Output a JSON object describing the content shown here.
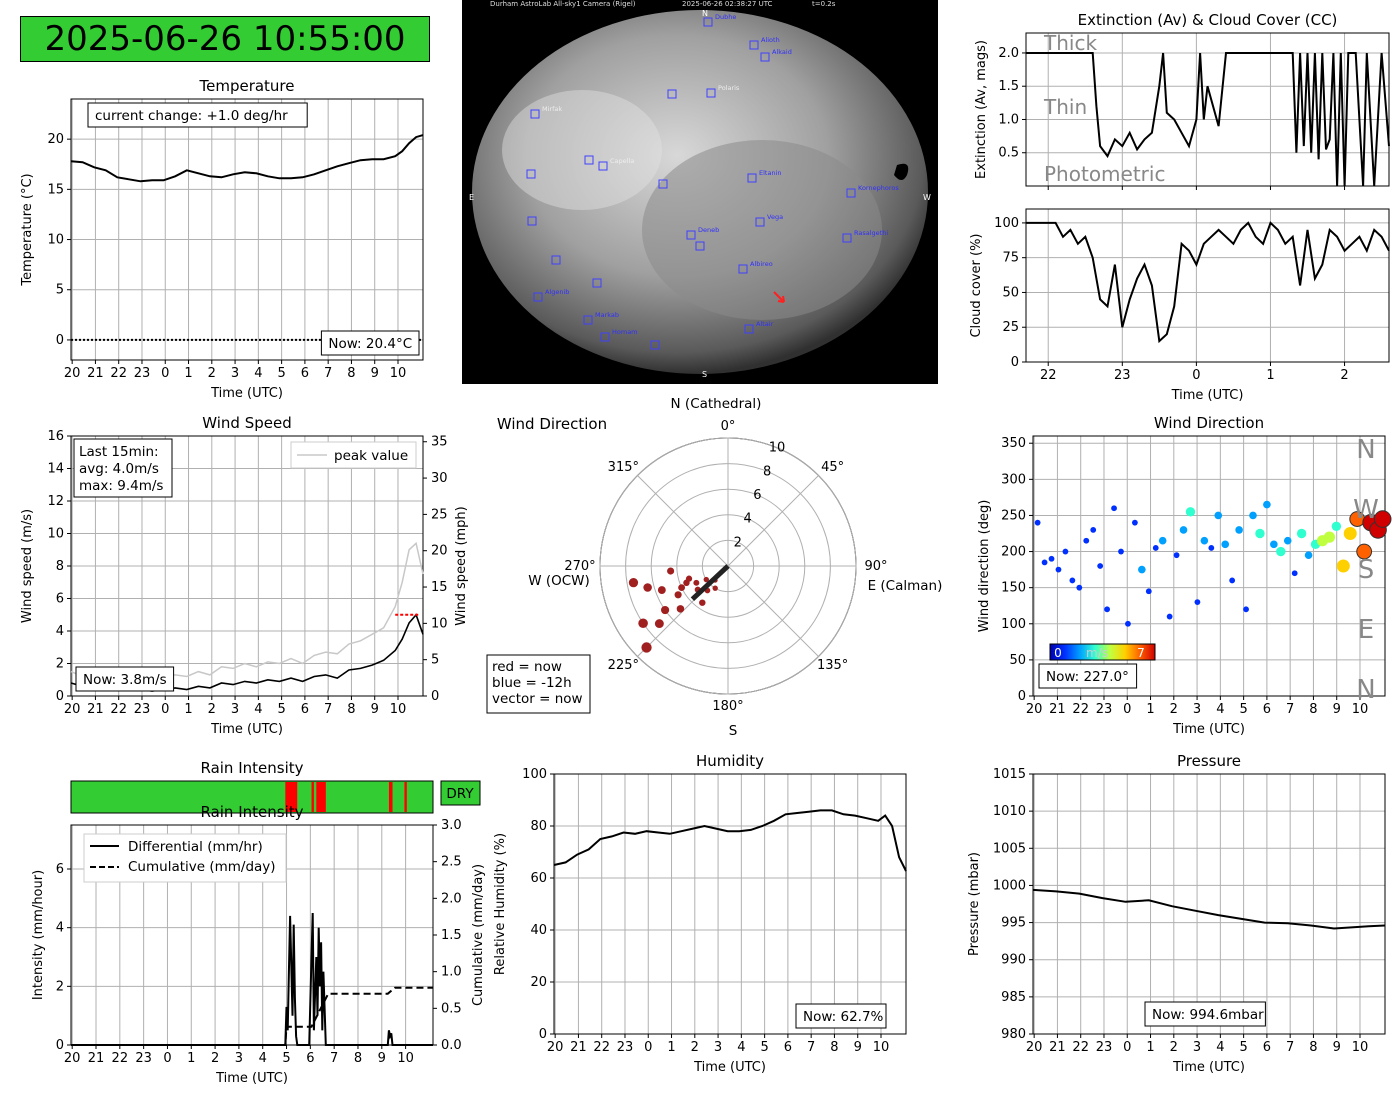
{
  "timestamp": "2025-06-26 10:55:00",
  "allsky": {
    "header": "Durham AstroLab All-sky1 Camera (Rigel)",
    "image_time": "2025-06-26 02:38:27 UTC",
    "exposure": "t=0.2s",
    "compass": {
      "n": "N",
      "s": "S",
      "e": "E",
      "w": "W"
    },
    "stars": [
      "Dubhe",
      "Alioth",
      "Alkaid",
      "Mirfak",
      "Polaris",
      "Capella",
      "Eltanin",
      "Kornephoros",
      "Vega",
      "Deneb",
      "Rasalgethi",
      "Albireo",
      "Algenib",
      "Markab",
      "Homam",
      "Altair"
    ]
  },
  "colors": {
    "green": "#33cc33",
    "red": "#ff0000",
    "line": "#000000",
    "grid": "#b0b0b0",
    "peak": "#c8c8c8"
  },
  "chart_data": [
    {
      "id": "temperature",
      "type": "line",
      "title": "Temperature",
      "xlabel": "Time (UTC)",
      "ylabel": "Temperature (°C)",
      "x_ticks": [
        "20",
        "21",
        "22",
        "23",
        "0",
        "1",
        "2",
        "3",
        "4",
        "5",
        "6",
        "7",
        "8",
        "9",
        "10"
      ],
      "y_ticks": [
        0,
        5,
        10,
        15,
        20
      ],
      "ylim": [
        -2,
        24
      ],
      "xlim": [
        0,
        15.2
      ],
      "annotation": "current change: +1.0 deg/hr",
      "now": "Now: 20.4°C",
      "zero_line": true,
      "x": [
        0,
        0.5,
        1,
        1.5,
        2,
        2.5,
        3,
        3.5,
        4,
        4.5,
        5,
        5.5,
        6,
        6.5,
        7,
        7.5,
        8,
        8.5,
        9,
        9.5,
        10,
        10.5,
        11,
        11.5,
        12,
        12.5,
        13,
        13.5,
        14,
        14.3,
        14.6,
        14.9,
        15.2
      ],
      "values": [
        17.8,
        17.7,
        17.2,
        16.9,
        16.2,
        16.0,
        15.8,
        15.9,
        15.9,
        16.3,
        16.9,
        16.6,
        16.3,
        16.2,
        16.5,
        16.7,
        16.6,
        16.3,
        16.1,
        16.1,
        16.2,
        16.5,
        16.9,
        17.3,
        17.6,
        17.9,
        18.0,
        18.0,
        18.3,
        18.8,
        19.6,
        20.2,
        20.4
      ]
    },
    {
      "id": "extinction",
      "type": "line",
      "title": "Extinction (Av) & Cloud Cover (CC)",
      "ylabel": "Extinction (Av, mags)",
      "x_ticks": [
        "22",
        "23",
        "0",
        "1",
        "2"
      ],
      "y_ticks": [
        0.5,
        1.0,
        1.5,
        2.0
      ],
      "ylim": [
        0,
        2.3
      ],
      "xlim": [
        -0.3,
        4.6
      ],
      "zones": [
        "Thick",
        "Thin",
        "Photometric"
      ],
      "x": [
        -0.3,
        0.6,
        0.65,
        0.7,
        0.8,
        0.9,
        1.0,
        1.1,
        1.2,
        1.3,
        1.4,
        1.5,
        1.55,
        1.6,
        1.7,
        1.8,
        1.9,
        2.0,
        2.05,
        2.1,
        2.15,
        2.3,
        2.4,
        2.45,
        2.55,
        2.6,
        3.3,
        3.35,
        3.4,
        3.45,
        3.5,
        3.55,
        3.6,
        3.65,
        3.7,
        3.75,
        3.8,
        3.85,
        3.9,
        3.95,
        4.0,
        4.05,
        4.15,
        4.25,
        4.3,
        4.4,
        4.5,
        4.6
      ],
      "values": [
        2.0,
        2.0,
        1.2,
        0.6,
        0.45,
        0.7,
        0.6,
        0.8,
        0.55,
        0.7,
        0.8,
        1.5,
        2.0,
        1.1,
        1.0,
        0.8,
        0.6,
        1.0,
        2.0,
        1.0,
        1.5,
        0.9,
        2.0,
        2.0,
        2.0,
        2.0,
        2.0,
        0.5,
        2.0,
        0.6,
        2.0,
        0.5,
        2.0,
        0.4,
        2.0,
        0.55,
        0.7,
        2.0,
        0.0,
        2.0,
        0.0,
        2.0,
        2.0,
        0.0,
        2.0,
        0.0,
        2.0,
        0.6
      ]
    },
    {
      "id": "cloud_cover",
      "type": "line",
      "xlabel": "Time (UTC)",
      "ylabel": "Cloud cover (%)",
      "x_ticks": [
        "22",
        "23",
        "0",
        "1",
        "2"
      ],
      "y_ticks": [
        0,
        25,
        50,
        75,
        100
      ],
      "ylim": [
        0,
        110
      ],
      "xlim": [
        -0.3,
        4.6
      ],
      "x": [
        -0.3,
        0.1,
        0.2,
        0.3,
        0.4,
        0.5,
        0.6,
        0.7,
        0.8,
        0.9,
        1.0,
        1.1,
        1.2,
        1.3,
        1.4,
        1.5,
        1.6,
        1.7,
        1.8,
        1.9,
        2.0,
        2.1,
        2.2,
        2.3,
        2.4,
        2.5,
        2.6,
        2.7,
        2.8,
        2.9,
        3.0,
        3.1,
        3.2,
        3.3,
        3.4,
        3.5,
        3.6,
        3.7,
        3.8,
        3.9,
        4.0,
        4.1,
        4.2,
        4.3,
        4.4,
        4.5,
        4.6
      ],
      "values": [
        100,
        100,
        90,
        95,
        85,
        90,
        75,
        45,
        40,
        70,
        25,
        45,
        60,
        70,
        55,
        15,
        20,
        40,
        85,
        80,
        70,
        85,
        90,
        95,
        90,
        85,
        95,
        100,
        90,
        85,
        100,
        95,
        85,
        90,
        55,
        95,
        60,
        70,
        95,
        90,
        80,
        85,
        90,
        80,
        95,
        90,
        80
      ]
    },
    {
      "id": "wind_speed",
      "type": "line",
      "title": "Wind Speed",
      "xlabel": "Time (UTC)",
      "ylabel": "Wind speed (m/s)",
      "ylabel_right": "Wind speed (mph)",
      "x_ticks": [
        "20",
        "21",
        "22",
        "23",
        "0",
        "1",
        "2",
        "3",
        "4",
        "5",
        "6",
        "7",
        "8",
        "9",
        "10"
      ],
      "y_ticks": [
        0,
        2,
        4,
        6,
        8,
        10,
        12,
        14,
        16
      ],
      "y_ticks_right": [
        0,
        5,
        10,
        15,
        20,
        25,
        30,
        35
      ],
      "ylim": [
        0,
        16
      ],
      "xlim": [
        0,
        15.2
      ],
      "legend": "peak value",
      "summary": [
        "Last 15min:",
        "avg: 4.0m/s",
        "max: 9.4m/s"
      ],
      "now": "Now: 3.8m/s",
      "x": [
        0,
        0.5,
        1,
        1.5,
        2,
        2.5,
        3,
        3.5,
        4,
        4.5,
        5,
        5.5,
        6,
        6.5,
        7,
        7.5,
        8,
        8.5,
        9,
        9.5,
        10,
        10.5,
        11,
        11.5,
        12,
        12.5,
        13,
        13.5,
        14,
        14.3,
        14.6,
        14.9,
        15.2
      ],
      "values": [
        0.8,
        0.6,
        0.5,
        0.7,
        0.5,
        0.4,
        0.4,
        0.3,
        0.4,
        0.5,
        0.4,
        0.6,
        0.5,
        0.8,
        0.7,
        0.9,
        0.8,
        1.0,
        0.9,
        1.1,
        0.9,
        1.2,
        1.3,
        1.1,
        1.6,
        1.7,
        1.9,
        2.2,
        2.8,
        3.5,
        4.5,
        5.0,
        3.8
      ],
      "peak_values": [
        1.5,
        1.2,
        1.3,
        1.4,
        1.2,
        1.0,
        1.1,
        1.0,
        1.2,
        1.3,
        1.2,
        1.5,
        1.3,
        1.8,
        1.7,
        2.0,
        1.8,
        2.1,
        2.0,
        2.3,
        2.0,
        2.5,
        2.7,
        2.6,
        3.2,
        3.4,
        3.8,
        4.2,
        5.5,
        7.0,
        9.0,
        9.4,
        7.5
      ]
    },
    {
      "id": "wind_polar",
      "type": "scatter",
      "title": "Wind Direction",
      "angle_labels": [
        "0°",
        "45°",
        "90°",
        "135°",
        "180°",
        "225°",
        "270°",
        "315°"
      ],
      "direction_labels": {
        "n": "N (Cathedral)",
        "e": "E (Calman)",
        "s": "S",
        "w": "W (OCW)"
      },
      "radial_ticks": [
        2,
        4,
        6,
        8,
        10
      ],
      "rmax": 10,
      "legend": [
        "red = now",
        "blue = -12h",
        "vector = now"
      ],
      "vector": {
        "direction": 227,
        "speed": 3.8
      },
      "points_direction": [
        225,
        230,
        240,
        250,
        260,
        215,
        235,
        220,
        245,
        255,
        232,
        228,
        238,
        248,
        265,
        210,
        222,
        236,
        242,
        252
      ],
      "points_speed": [
        9.0,
        7.0,
        4.5,
        5.5,
        7.5,
        3.5,
        6.0,
        2.5,
        4.0,
        6.5,
        3.0,
        5.0,
        2.0,
        3.5,
        4.5,
        2.0,
        1.5,
        8.0,
        2.8,
        3.2
      ]
    },
    {
      "id": "wind_direction",
      "type": "scatter",
      "title": "Wind Direction",
      "xlabel": "Time (UTC)",
      "ylabel": "Wind direction (deg)",
      "x_ticks": [
        "20",
        "21",
        "22",
        "23",
        "0",
        "1",
        "2",
        "3",
        "4",
        "5",
        "6",
        "7",
        "8",
        "9",
        "10"
      ],
      "y_ticks": [
        0,
        50,
        100,
        150,
        200,
        250,
        300,
        350
      ],
      "ylim": [
        0,
        360
      ],
      "xlim": [
        0,
        15.2
      ],
      "compass_labels": [
        "N",
        "W",
        "S",
        "E",
        "N"
      ],
      "colorbar": {
        "min": "0",
        "label": "m/s",
        "max": "7"
      },
      "now": "Now: 227.0°",
      "x": [
        0.2,
        0.5,
        0.8,
        1.1,
        1.4,
        1.7,
        2.0,
        2.3,
        2.6,
        2.9,
        3.2,
        3.5,
        3.8,
        4.1,
        4.4,
        4.7,
        5.0,
        5.3,
        5.6,
        5.9,
        6.2,
        6.5,
        6.8,
        7.1,
        7.4,
        7.7,
        8.0,
        8.3,
        8.6,
        8.9,
        9.2,
        9.5,
        9.8,
        10.1,
        10.4,
        10.7,
        11.0,
        11.3,
        11.6,
        11.9,
        12.2,
        12.5,
        12.8,
        13.1,
        13.4,
        13.7,
        14.0,
        14.3,
        14.6,
        14.9,
        15.1
      ],
      "values": [
        240,
        185,
        190,
        175,
        200,
        160,
        150,
        215,
        230,
        180,
        120,
        260,
        200,
        100,
        240,
        175,
        145,
        205,
        215,
        110,
        195,
        230,
        255,
        130,
        215,
        205,
        250,
        210,
        160,
        230,
        120,
        250,
        225,
        265,
        210,
        200,
        215,
        170,
        225,
        195,
        210,
        215,
        220,
        235,
        180,
        225,
        245,
        200,
        240,
        230,
        245
      ],
      "speeds": [
        1,
        1,
        1,
        1,
        1,
        1,
        1,
        1,
        1,
        1,
        1,
        1,
        1,
        1,
        1,
        2,
        1,
        1,
        2,
        1,
        1,
        2,
        3,
        1,
        2,
        1,
        2,
        2,
        1,
        2,
        1,
        2,
        3,
        2,
        2,
        3,
        2,
        1,
        3,
        2,
        3,
        4,
        4,
        3,
        5,
        5,
        6,
        6,
        7,
        7,
        7
      ]
    },
    {
      "id": "rain",
      "type": "line",
      "title": "Rain Intensity",
      "xlabel": "Time (UTC)",
      "ylabel": "Intensity (mm/hour)",
      "ylabel_right": "Cumulative (mm/day)",
      "x_ticks": [
        "20",
        "21",
        "22",
        "23",
        "0",
        "1",
        "2",
        "3",
        "4",
        "5",
        "6",
        "7",
        "8",
        "9",
        "10"
      ],
      "y_ticks": [
        0,
        2,
        4,
        6
      ],
      "y_ticks_right": [
        0.0,
        0.5,
        1.0,
        1.5,
        2.0,
        2.5,
        3.0
      ],
      "ylim": [
        0,
        7.5
      ],
      "ylim_right": [
        0,
        3.0
      ],
      "xlim": [
        0,
        15.2
      ],
      "status": "DRY",
      "legend": [
        "Differential (mm/hr)",
        "Cumulative (mm/day)"
      ],
      "rain_bands": [
        [
          9.0,
          9.5
        ],
        [
          10.1,
          10.2
        ],
        [
          10.3,
          10.7
        ],
        [
          13.35,
          13.5
        ],
        [
          14.0,
          14.1
        ]
      ],
      "series": [
        {
          "name": "Differential (mm/hr)",
          "x": [
            0,
            9.0,
            9.05,
            9.1,
            9.15,
            9.2,
            9.3,
            9.35,
            9.4,
            9.45,
            9.5,
            10.0,
            10.1,
            10.15,
            10.2,
            10.3,
            10.35,
            10.4,
            10.45,
            10.5,
            10.55,
            10.6,
            10.7,
            13.3,
            13.35,
            13.4,
            13.45,
            13.5,
            15.2
          ],
          "values": [
            0,
            0,
            1.3,
            0.5,
            2.5,
            4.4,
            1.0,
            4.1,
            1.6,
            0.3,
            0,
            0,
            3.0,
            4.5,
            0.5,
            3.0,
            1.0,
            4.0,
            2.0,
            3.5,
            0.5,
            2.5,
            0,
            0,
            0.5,
            0.3,
            0.4,
            0,
            0
          ]
        },
        {
          "name": "Cumulative (mm/day)",
          "x": [
            0,
            9.0,
            9.05,
            10.0,
            10.1,
            10.8,
            13.3,
            13.6,
            15.2
          ],
          "values": [
            0,
            0,
            0.25,
            0.25,
            0.25,
            0.7,
            0.7,
            0.78,
            0.78
          ]
        }
      ]
    },
    {
      "id": "humidity",
      "type": "line",
      "title": "Humidity",
      "xlabel": "Time (UTC)",
      "ylabel": "Relative Humidity (%)",
      "x_ticks": [
        "20",
        "21",
        "22",
        "23",
        "0",
        "1",
        "2",
        "3",
        "4",
        "5",
        "6",
        "7",
        "8",
        "9",
        "10"
      ],
      "y_ticks": [
        0,
        20,
        40,
        60,
        80,
        100
      ],
      "ylim": [
        0,
        100
      ],
      "xlim": [
        0,
        15.2
      ],
      "now": "Now: 62.7%",
      "x": [
        0,
        0.5,
        1,
        1.5,
        2,
        2.5,
        3,
        3.5,
        4,
        4.5,
        5,
        5.5,
        6,
        6.5,
        7,
        7.5,
        8,
        8.5,
        9,
        9.5,
        10,
        10.5,
        11,
        11.5,
        12,
        12.5,
        13,
        13.5,
        14,
        14.3,
        14.6,
        14.9,
        15.2
      ],
      "values": [
        65,
        66,
        69,
        71,
        75,
        76,
        77.5,
        77,
        78,
        77.5,
        77,
        78,
        79,
        80,
        79,
        78,
        78,
        78.5,
        80,
        82,
        84.5,
        85,
        85.5,
        86,
        86,
        84.5,
        84,
        83,
        82,
        84,
        80,
        68,
        62.7
      ]
    },
    {
      "id": "pressure",
      "type": "line",
      "title": "Pressure",
      "xlabel": "Time (UTC)",
      "ylabel": "Pressure (mbar)",
      "x_ticks": [
        "20",
        "21",
        "22",
        "23",
        "0",
        "1",
        "2",
        "3",
        "4",
        "5",
        "6",
        "7",
        "8",
        "9",
        "10"
      ],
      "y_ticks": [
        980,
        985,
        990,
        995,
        1000,
        1005,
        1010,
        1015
      ],
      "ylim": [
        980,
        1015
      ],
      "xlim": [
        0,
        15.2
      ],
      "now": "Now: 994.6mbar",
      "x": [
        0,
        1,
        2,
        3,
        4,
        5,
        6,
        7,
        8,
        9,
        10,
        11,
        12,
        13,
        14,
        14.5,
        15.2
      ],
      "values": [
        999.4,
        999.2,
        998.9,
        998.3,
        997.8,
        998.0,
        997.2,
        996.6,
        996.0,
        995.5,
        995.0,
        994.9,
        994.6,
        994.2,
        994.4,
        994.5,
        994.6
      ]
    }
  ]
}
